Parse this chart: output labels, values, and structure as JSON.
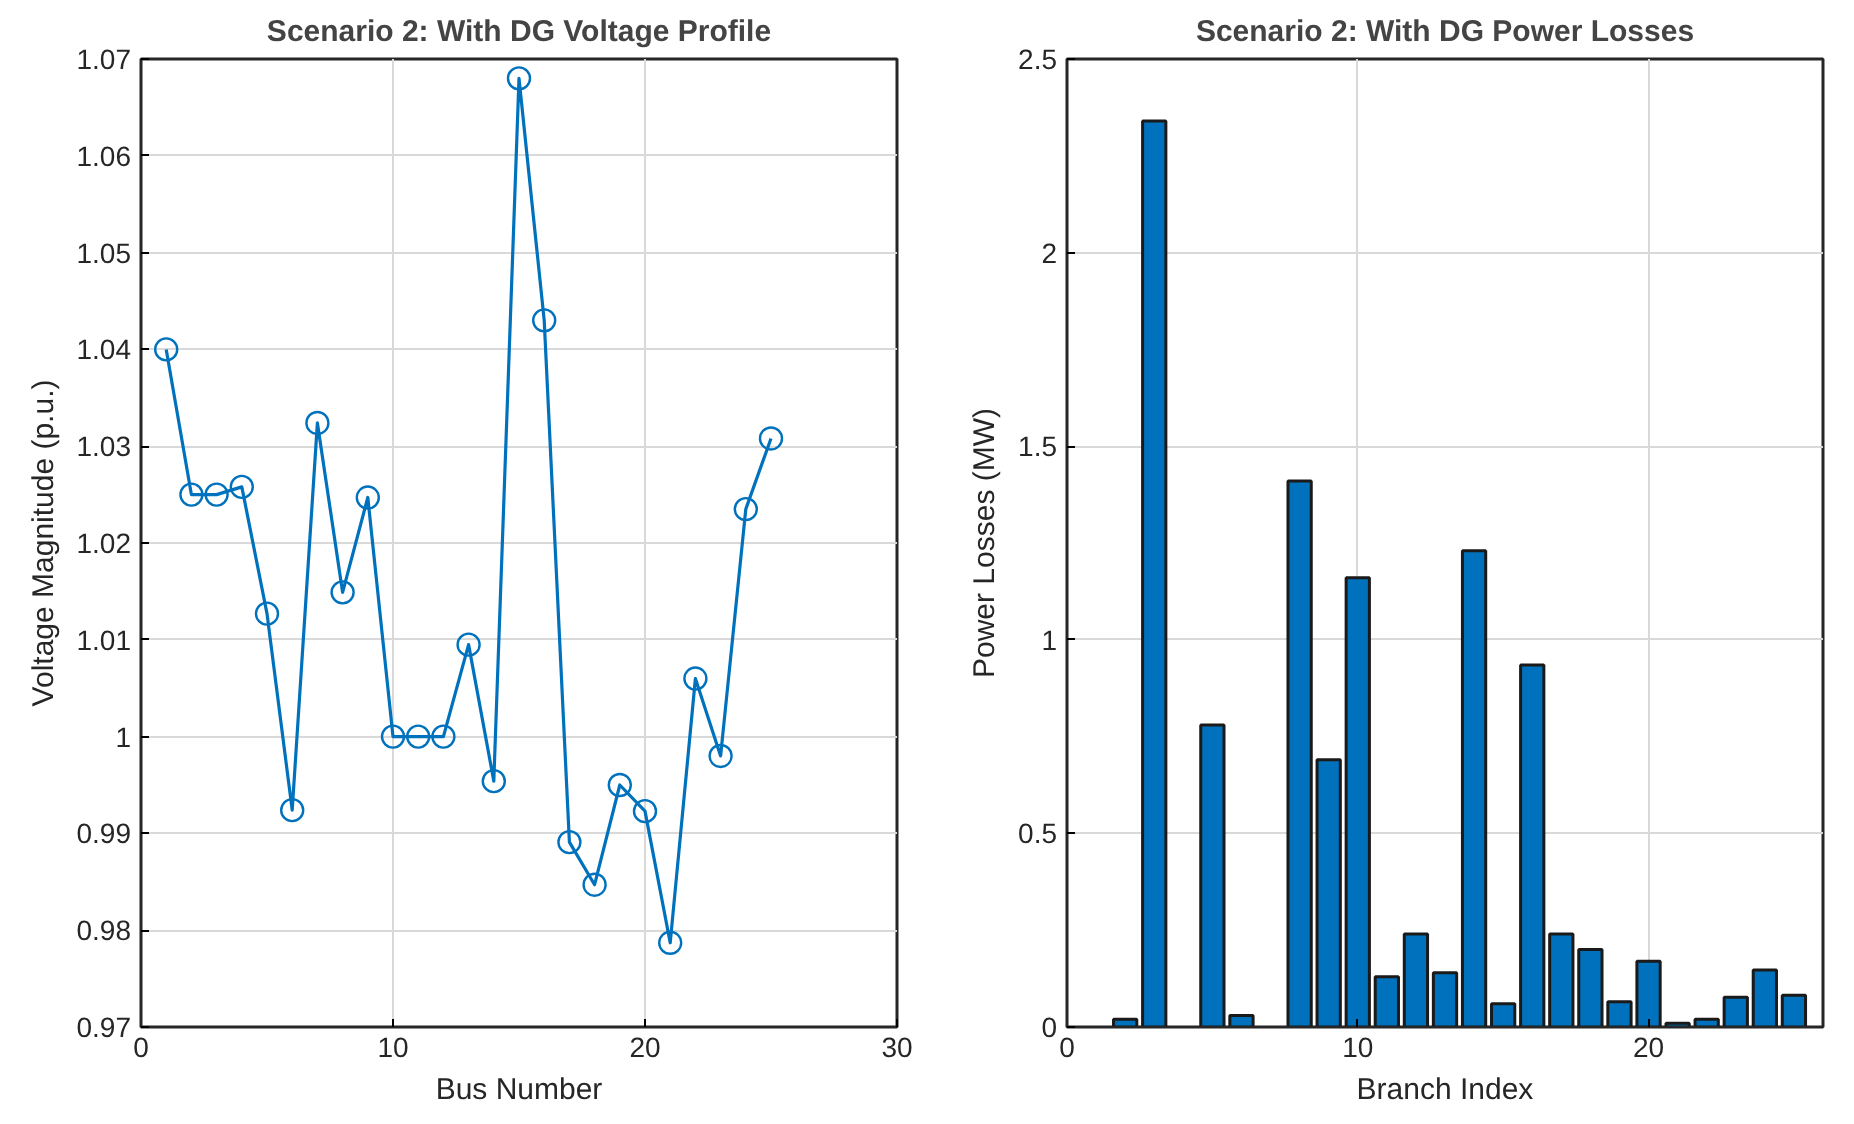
{
  "chart_data": [
    {
      "type": "line",
      "title": "Scenario 2: With DG Voltage Profile",
      "xlabel": "Bus Number",
      "ylabel": "Voltage Magnitude (p.u.)",
      "x": [
        1,
        2,
        3,
        4,
        5,
        6,
        7,
        8,
        9,
        10,
        11,
        12,
        13,
        14,
        15,
        16,
        17,
        18,
        19,
        20,
        21,
        22,
        23,
        24,
        25
      ],
      "series": [
        {
          "color": "#0072bd",
          "values": [
            1.04,
            1.025,
            1.025,
            1.0258,
            1.0127,
            0.9924,
            1.0324,
            1.0149,
            1.0247,
            1.0,
            1.0,
            1.0,
            1.0095,
            0.9954,
            1.068,
            1.043,
            0.9891,
            0.9847,
            0.995,
            0.9923,
            0.9787,
            1.006,
            0.998,
            1.0235,
            1.0308
          ]
        }
      ],
      "xlim": [
        0,
        30
      ],
      "xticks": [
        0,
        10,
        20,
        30
      ],
      "ylim": [
        0.97,
        1.07
      ],
      "yticks": [
        0.97,
        0.98,
        0.99,
        1,
        1.01,
        1.02,
        1.03,
        1.04,
        1.05,
        1.06,
        1.07
      ],
      "grid": true,
      "marker": "circle",
      "line_style": "solid"
    },
    {
      "type": "bar",
      "title": "Scenario 2: With DG Power Losses",
      "xlabel": "Branch Index",
      "ylabel": "Power Losses (MW)",
      "x": [
        2,
        3,
        4,
        5,
        6,
        7,
        8,
        9,
        10,
        11,
        12,
        13,
        14,
        15,
        16,
        17,
        18,
        19,
        20,
        21,
        22,
        23,
        24,
        25
      ],
      "series": [
        {
          "color": "#0072bd",
          "values": [
            0.02,
            2.34,
            null,
            0.78,
            0.03,
            null,
            1.41,
            0.69,
            1.16,
            0.13,
            0.24,
            0.14,
            1.23,
            0.06,
            0.935,
            0.24,
            0.2,
            0.065,
            0.17,
            0.01,
            0.02,
            0.077,
            0.147,
            0.082
          ]
        }
      ],
      "xlim": [
        0,
        26
      ],
      "xticks": [
        0,
        10,
        20
      ],
      "ylim": [
        0,
        2.5
      ],
      "yticks": [
        0,
        0.5,
        1,
        1.5,
        2,
        2.5
      ],
      "grid": true
    }
  ]
}
